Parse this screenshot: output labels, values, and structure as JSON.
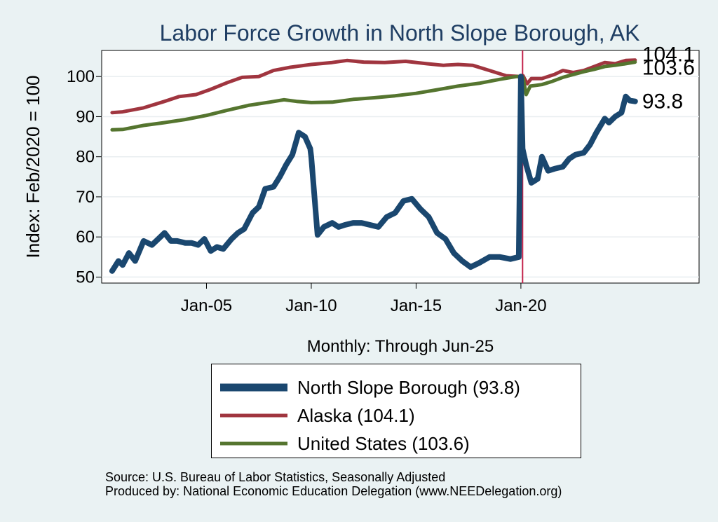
{
  "chart_data": {
    "type": "line",
    "title": "Labor Force Growth in North Slope Borough, AK",
    "xlabel": "Monthly: Through Jun-25",
    "ylabel": "Index: Feb/2020 = 100",
    "xlim": [
      2000.0,
      2028.5
    ],
    "ylim": [
      48.5,
      106.5
    ],
    "x_ticks": [
      {
        "value": 2005.0,
        "label": "Jan-05"
      },
      {
        "value": 2010.0,
        "label": "Jan-10"
      },
      {
        "value": 2015.0,
        "label": "Jan-15"
      },
      {
        "value": 2020.0,
        "label": "Jan-20"
      }
    ],
    "y_ticks": [
      50,
      60,
      70,
      80,
      90,
      100
    ],
    "vline": {
      "x": 2020.08,
      "color": "#c2224a"
    },
    "series": [
      {
        "name": "North Slope Borough",
        "legend_label": "North Slope Borough  (93.8)",
        "end_label": "93.8",
        "end_value": 93.8,
        "color": "#1a476f",
        "x": [
          2000.5,
          2000.8,
          2001.0,
          2001.3,
          2001.6,
          2002.0,
          2002.4,
          2002.8,
          2003.0,
          2003.3,
          2003.6,
          2004.0,
          2004.3,
          2004.6,
          2004.9,
          2005.2,
          2005.5,
          2005.8,
          2006.2,
          2006.5,
          2006.8,
          2007.2,
          2007.5,
          2007.8,
          2008.2,
          2008.5,
          2008.8,
          2009.1,
          2009.4,
          2009.7,
          2009.95,
          2010.0,
          2010.3,
          2010.6,
          2011.0,
          2011.3,
          2011.6,
          2012.0,
          2012.4,
          2012.8,
          2013.2,
          2013.6,
          2014.0,
          2014.4,
          2014.8,
          2015.2,
          2015.6,
          2016.0,
          2016.4,
          2016.8,
          2017.2,
          2017.6,
          2018.0,
          2018.5,
          2019.0,
          2019.5,
          2019.9,
          2020.0,
          2020.08,
          2020.25,
          2020.5,
          2020.8,
          2021.0,
          2021.3,
          2021.6,
          2022.0,
          2022.3,
          2022.6,
          2023.0,
          2023.3,
          2023.6,
          2024.0,
          2024.2,
          2024.5,
          2024.8,
          2025.0,
          2025.2,
          2025.45
        ],
        "values": [
          51.5,
          54,
          53,
          56,
          54,
          59,
          58,
          60,
          61,
          59,
          59,
          58.5,
          58.5,
          58,
          59.5,
          56.5,
          57.5,
          57,
          59.5,
          61,
          62,
          66,
          67.5,
          72,
          72.5,
          75,
          78,
          80.5,
          86,
          85,
          82,
          80,
          60.5,
          62.5,
          63.5,
          62.5,
          63,
          63.5,
          63.5,
          63,
          62.5,
          65,
          66,
          69,
          69.5,
          67,
          65,
          61,
          59.5,
          56,
          54,
          52.5,
          53.5,
          55,
          55,
          54.5,
          55,
          100,
          82,
          78,
          73.5,
          74.5,
          80,
          76.5,
          77,
          77.5,
          79.5,
          80.5,
          81,
          83,
          86,
          89.5,
          88.5,
          90,
          91,
          95,
          94,
          93.8
        ]
      },
      {
        "name": "Alaska",
        "legend_label": "Alaska (104.1)",
        "end_label": "104.1",
        "end_value": 104.1,
        "color": "#a0353f",
        "x": [
          2000.5,
          2001.0,
          2002.0,
          2003.0,
          2003.7,
          2004.5,
          2005.2,
          2006.0,
          2006.7,
          2007.5,
          2008.2,
          2009.0,
          2010.0,
          2011.0,
          2011.7,
          2012.5,
          2013.5,
          2014.5,
          2015.5,
          2016.3,
          2017.0,
          2017.7,
          2018.5,
          2019.3,
          2020.0,
          2020.1,
          2020.3,
          2020.5,
          2021.0,
          2021.6,
          2022.0,
          2022.5,
          2023.0,
          2023.5,
          2024.0,
          2024.5,
          2025.0,
          2025.45
        ],
        "values": [
          91,
          91.2,
          92.2,
          93.8,
          95,
          95.5,
          96.8,
          98.5,
          99.8,
          100,
          101.5,
          102.3,
          103,
          103.5,
          104,
          103.6,
          103.5,
          103.8,
          103.2,
          102.8,
          103,
          102.8,
          101.5,
          100.2,
          100,
          100.2,
          98.2,
          99.5,
          99.5,
          100.5,
          101.5,
          101,
          101.5,
          102.5,
          103.5,
          103.2,
          104,
          104.1
        ]
      },
      {
        "name": "United States",
        "legend_label": "United States (103.6)",
        "end_label": "103.6",
        "end_value": 103.6,
        "color": "#55752f",
        "x": [
          2000.5,
          2001.0,
          2002.0,
          2003.0,
          2004.0,
          2005.0,
          2006.0,
          2007.0,
          2008.0,
          2008.7,
          2009.3,
          2010.0,
          2011.0,
          2012.0,
          2013.0,
          2014.0,
          2015.0,
          2016.0,
          2017.0,
          2018.0,
          2019.0,
          2019.8,
          2020.0,
          2020.1,
          2020.25,
          2020.45,
          2021.0,
          2021.5,
          2022.0,
          2022.5,
          2023.0,
          2023.5,
          2024.0,
          2024.5,
          2025.0,
          2025.45
        ],
        "values": [
          86.7,
          86.8,
          87.8,
          88.5,
          89.3,
          90.3,
          91.6,
          92.8,
          93.6,
          94.2,
          93.8,
          93.5,
          93.6,
          94.3,
          94.7,
          95.2,
          95.8,
          96.7,
          97.6,
          98.3,
          99.3,
          100,
          100,
          99.8,
          95.5,
          97.6,
          98,
          98.8,
          99.8,
          100.5,
          101.2,
          101.8,
          102.5,
          102.8,
          103.2,
          103.6
        ]
      }
    ]
  },
  "source": {
    "line1": "Source: U.S. Bureau of Labor Statistics, Seasonally Adjusted",
    "line2": "Produced by: National Economic Education Delegation (www.NEEDelegation.org)"
  }
}
